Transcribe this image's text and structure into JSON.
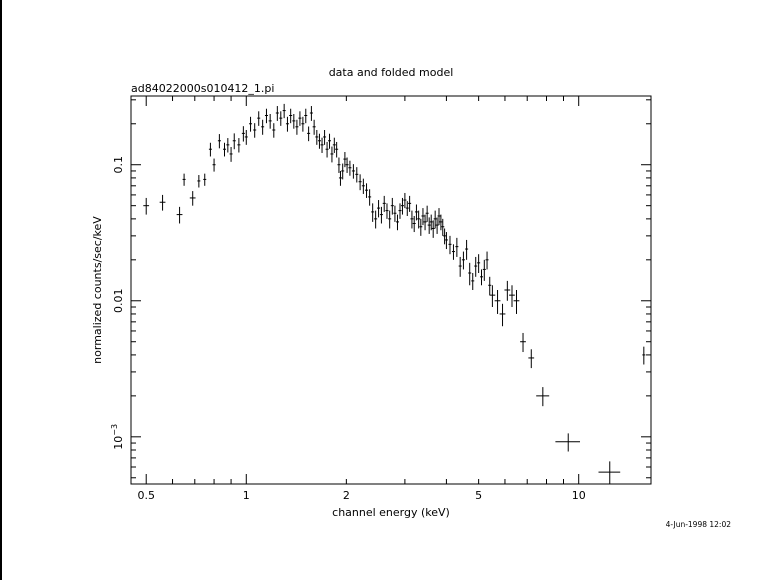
{
  "chart_data": {
    "type": "scatter",
    "title": "data and folded model",
    "subtitle": "ad84022000s010412_1.pi",
    "xlabel": "channel energy (keV)",
    "ylabel": "normalized counts/sec/keV",
    "timestamp": "4-Jun-1998 12:02",
    "x_scale": "log",
    "y_scale": "log",
    "xlim": [
      0.45,
      16.5
    ],
    "ylim": [
      0.00045,
      0.32
    ],
    "x_ticks": [
      {
        "value": 0.5,
        "label": "0.5"
      },
      {
        "value": 1,
        "label": "1"
      },
      {
        "value": 2,
        "label": "2"
      },
      {
        "value": 5,
        "label": "5"
      },
      {
        "value": 10,
        "label": "10"
      }
    ],
    "y_ticks": [
      {
        "value": 0.1,
        "label": "0.1"
      },
      {
        "value": 0.01,
        "label": "0.01"
      },
      {
        "value": 0.001,
        "label": "10",
        "exponent": "−3"
      }
    ],
    "series": [
      {
        "marker": "errorbar-cross",
        "points": [
          [
            0.5,
            0.05,
            0.02,
            0.007
          ],
          [
            0.56,
            0.053,
            0.02,
            0.007
          ],
          [
            0.63,
            0.043,
            0.02,
            0.006
          ],
          [
            0.65,
            0.078,
            0.01,
            0.008
          ],
          [
            0.69,
            0.057,
            0.02,
            0.007
          ],
          [
            0.72,
            0.076,
            0.01,
            0.008
          ],
          [
            0.75,
            0.078,
            0.01,
            0.008
          ],
          [
            0.78,
            0.13,
            0.01,
            0.015
          ],
          [
            0.8,
            0.1,
            0.01,
            0.011
          ],
          [
            0.83,
            0.15,
            0.01,
            0.018
          ],
          [
            0.86,
            0.13,
            0.01,
            0.015
          ],
          [
            0.88,
            0.14,
            0.01,
            0.017
          ],
          [
            0.9,
            0.12,
            0.01,
            0.015
          ],
          [
            0.92,
            0.15,
            0.01,
            0.02
          ],
          [
            0.95,
            0.14,
            0.01,
            0.017
          ],
          [
            0.98,
            0.17,
            0.01,
            0.022
          ],
          [
            1.0,
            0.16,
            0.01,
            0.02
          ],
          [
            1.03,
            0.2,
            0.01,
            0.025
          ],
          [
            1.06,
            0.18,
            0.01,
            0.022
          ],
          [
            1.09,
            0.22,
            0.01,
            0.027
          ],
          [
            1.12,
            0.19,
            0.01,
            0.024
          ],
          [
            1.15,
            0.23,
            0.01,
            0.028
          ],
          [
            1.18,
            0.21,
            0.01,
            0.026
          ],
          [
            1.21,
            0.18,
            0.01,
            0.022
          ],
          [
            1.24,
            0.24,
            0.01,
            0.03
          ],
          [
            1.27,
            0.22,
            0.01,
            0.027
          ],
          [
            1.3,
            0.25,
            0.01,
            0.03
          ],
          [
            1.33,
            0.2,
            0.01,
            0.025
          ],
          [
            1.36,
            0.23,
            0.01,
            0.028
          ],
          [
            1.39,
            0.21,
            0.01,
            0.026
          ],
          [
            1.42,
            0.19,
            0.01,
            0.024
          ],
          [
            1.45,
            0.22,
            0.01,
            0.027
          ],
          [
            1.48,
            0.2,
            0.01,
            0.025
          ],
          [
            1.51,
            0.23,
            0.01,
            0.028
          ],
          [
            1.54,
            0.17,
            0.01,
            0.021
          ],
          [
            1.57,
            0.24,
            0.01,
            0.03
          ],
          [
            1.6,
            0.19,
            0.01,
            0.024
          ],
          [
            1.63,
            0.16,
            0.01,
            0.02
          ],
          [
            1.66,
            0.15,
            0.01,
            0.019
          ],
          [
            1.69,
            0.14,
            0.01,
            0.018
          ],
          [
            1.72,
            0.16,
            0.01,
            0.02
          ],
          [
            1.75,
            0.13,
            0.01,
            0.017
          ],
          [
            1.78,
            0.15,
            0.01,
            0.019
          ],
          [
            1.81,
            0.12,
            0.01,
            0.016
          ],
          [
            1.84,
            0.14,
            0.01,
            0.018
          ],
          [
            1.87,
            0.13,
            0.01,
            0.017
          ],
          [
            1.9,
            0.1,
            0.01,
            0.013
          ],
          [
            1.92,
            0.08,
            0.01,
            0.01
          ],
          [
            1.95,
            0.09,
            0.01,
            0.012
          ],
          [
            1.98,
            0.11,
            0.01,
            0.014
          ],
          [
            2.01,
            0.1,
            0.01,
            0.013
          ],
          [
            2.05,
            0.095,
            0.01,
            0.012
          ],
          [
            2.1,
            0.09,
            0.01,
            0.011
          ],
          [
            2.15,
            0.085,
            0.01,
            0.011
          ],
          [
            2.2,
            0.075,
            0.01,
            0.01
          ],
          [
            2.25,
            0.07,
            0.01,
            0.009
          ],
          [
            2.3,
            0.065,
            0.01,
            0.008
          ],
          [
            2.35,
            0.058,
            0.01,
            0.008
          ],
          [
            2.4,
            0.045,
            0.01,
            0.007
          ],
          [
            2.45,
            0.04,
            0.01,
            0.006
          ],
          [
            2.5,
            0.048,
            0.01,
            0.007
          ],
          [
            2.55,
            0.043,
            0.01,
            0.006
          ],
          [
            2.6,
            0.052,
            0.01,
            0.007
          ],
          [
            2.65,
            0.046,
            0.01,
            0.006
          ],
          [
            2.7,
            0.04,
            0.01,
            0.006
          ],
          [
            2.75,
            0.05,
            0.01,
            0.007
          ],
          [
            2.8,
            0.044,
            0.01,
            0.006
          ],
          [
            2.85,
            0.038,
            0.01,
            0.005
          ],
          [
            2.9,
            0.046,
            0.01,
            0.006
          ],
          [
            2.95,
            0.05,
            0.01,
            0.007
          ],
          [
            3.0,
            0.055,
            0.01,
            0.007
          ],
          [
            3.05,
            0.048,
            0.01,
            0.006
          ],
          [
            3.1,
            0.052,
            0.01,
            0.007
          ],
          [
            3.15,
            0.04,
            0.01,
            0.006
          ],
          [
            3.2,
            0.037,
            0.01,
            0.005
          ],
          [
            3.25,
            0.045,
            0.01,
            0.006
          ],
          [
            3.3,
            0.04,
            0.01,
            0.006
          ],
          [
            3.35,
            0.035,
            0.01,
            0.005
          ],
          [
            3.4,
            0.042,
            0.01,
            0.006
          ],
          [
            3.45,
            0.038,
            0.01,
            0.005
          ],
          [
            3.5,
            0.044,
            0.01,
            0.006
          ],
          [
            3.55,
            0.036,
            0.01,
            0.005
          ],
          [
            3.6,
            0.038,
            0.01,
            0.005
          ],
          [
            3.65,
            0.034,
            0.01,
            0.005
          ],
          [
            3.7,
            0.04,
            0.01,
            0.006
          ],
          [
            3.75,
            0.036,
            0.01,
            0.005
          ],
          [
            3.8,
            0.042,
            0.01,
            0.006
          ],
          [
            3.85,
            0.038,
            0.01,
            0.005
          ],
          [
            3.9,
            0.035,
            0.01,
            0.005
          ],
          [
            3.95,
            0.03,
            0.01,
            0.004
          ],
          [
            4.0,
            0.028,
            0.01,
            0.004
          ],
          [
            4.1,
            0.026,
            0.01,
            0.004
          ],
          [
            4.2,
            0.023,
            0.01,
            0.003
          ],
          [
            4.3,
            0.025,
            0.01,
            0.004
          ],
          [
            4.4,
            0.018,
            0.01,
            0.003
          ],
          [
            4.5,
            0.02,
            0.01,
            0.003
          ],
          [
            4.6,
            0.024,
            0.01,
            0.004
          ],
          [
            4.7,
            0.016,
            0.01,
            0.003
          ],
          [
            4.8,
            0.014,
            0.01,
            0.002
          ],
          [
            4.9,
            0.018,
            0.01,
            0.003
          ],
          [
            5.0,
            0.019,
            0.01,
            0.003
          ],
          [
            5.1,
            0.015,
            0.01,
            0.002
          ],
          [
            5.2,
            0.017,
            0.01,
            0.003
          ],
          [
            5.3,
            0.02,
            0.01,
            0.003
          ],
          [
            5.4,
            0.013,
            0.01,
            0.002
          ],
          [
            5.5,
            0.011,
            0.02,
            0.002
          ],
          [
            5.7,
            0.01,
            0.02,
            0.002
          ],
          [
            5.9,
            0.008,
            0.02,
            0.0015
          ],
          [
            6.1,
            0.012,
            0.02,
            0.002
          ],
          [
            6.3,
            0.011,
            0.02,
            0.002
          ],
          [
            6.5,
            0.01,
            0.02,
            0.002
          ],
          [
            6.8,
            0.005,
            0.02,
            0.0008
          ],
          [
            7.2,
            0.0038,
            0.02,
            0.0006
          ],
          [
            7.8,
            0.002,
            0.045,
            0.00032
          ],
          [
            9.3,
            0.00092,
            0.085,
            0.00014
          ],
          [
            12.4,
            0.00055,
            0.075,
            0.00011
          ],
          [
            15.7,
            0.004,
            0.01,
            0.0006
          ]
        ]
      }
    ]
  }
}
